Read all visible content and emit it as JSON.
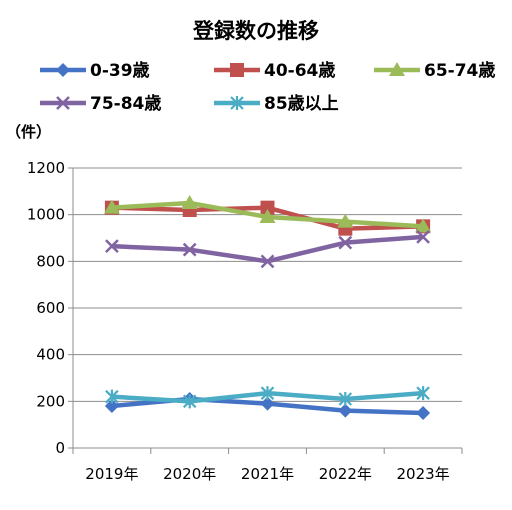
{
  "chart_data": {
    "type": "line",
    "title": "登録数の推移",
    "ylabel": "（件）",
    "categories": [
      "2019年",
      "2020年",
      "2021年",
      "2022年",
      "2023年"
    ],
    "ylim": [
      0,
      1200
    ],
    "yticks": [
      0,
      200,
      400,
      600,
      800,
      1000,
      1200
    ],
    "grid": true,
    "legend_position": "top",
    "series": [
      {
        "name": "0-39歳",
        "values": [
          180,
          210,
          190,
          160,
          150
        ],
        "color": "#4472C4",
        "marker": "diamond"
      },
      {
        "name": "40-64歳",
        "values": [
          1030,
          1020,
          1030,
          940,
          950
        ],
        "color": "#C0504D",
        "marker": "square"
      },
      {
        "name": "65-74歳",
        "values": [
          1030,
          1050,
          990,
          970,
          950
        ],
        "color": "#9BBB59",
        "marker": "triangle"
      },
      {
        "name": "75-84歳",
        "values": [
          865,
          850,
          800,
          880,
          905
        ],
        "color": "#8064A2",
        "marker": "x"
      },
      {
        "name": "85歳以上",
        "values": [
          220,
          200,
          235,
          210,
          235
        ],
        "color": "#4BACC6",
        "marker": "star"
      }
    ]
  }
}
